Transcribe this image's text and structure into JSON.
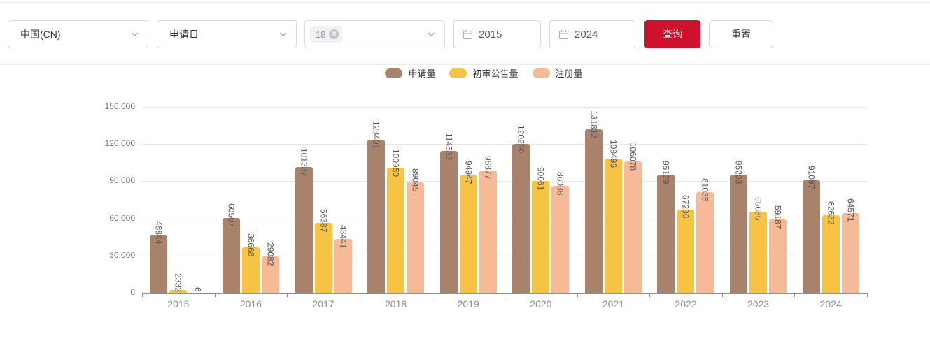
{
  "filters": {
    "country": {
      "value": "中国(CN)"
    },
    "date_type": {
      "value": "申请日"
    },
    "classification": {
      "tag": "18"
    },
    "year_start": {
      "value": "2015"
    },
    "year_end": {
      "value": "2024"
    },
    "query_button": "查询",
    "reset_button": "重置"
  },
  "colors": {
    "accent_red": "#CE122E",
    "gridline": "#e6e9ee",
    "axis": "#8f8f8f"
  },
  "chart_data": {
    "type": "bar",
    "title": "",
    "xlabel": "",
    "ylabel": "",
    "categories": [
      "2015",
      "2016",
      "2017",
      "2018",
      "2019",
      "2020",
      "2021",
      "2022",
      "2023",
      "2024"
    ],
    "series": [
      {
        "name": "申请量",
        "color": "#A9826B",
        "values": [
          46844,
          60507,
          101387,
          123401,
          114532,
          120280,
          131812,
          95129,
          95203,
          91097
        ]
      },
      {
        "name": "初审公告量",
        "color": "#F6C344",
        "values": [
          2332,
          36668,
          56387,
          100950,
          94947,
          90061,
          108496,
          67236,
          65685,
          62632
        ]
      },
      {
        "name": "注册量",
        "color": "#F6BA96",
        "values": [
          6,
          29082,
          43441,
          89045,
          98877,
          86038,
          106078,
          81035,
          59187,
          64571
        ]
      }
    ],
    "ylim": [
      0,
      150000
    ],
    "yticks": [
      0,
      30000,
      60000,
      90000,
      120000,
      150000
    ],
    "ytick_labels": [
      "0",
      "30,000",
      "60,000",
      "90,000",
      "120,000",
      "150,000"
    ],
    "grid": true,
    "legend_position": "top-center",
    "bar_value_labels": "rotated-90"
  }
}
